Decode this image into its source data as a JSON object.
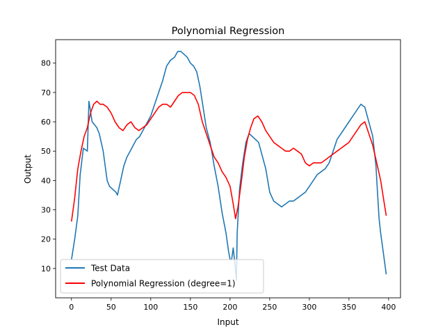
{
  "chart_data": {
    "type": "line",
    "title": "Polynomial Regression",
    "xlabel": "Input",
    "ylabel": "Output",
    "xlim": [
      -20,
      415
    ],
    "ylim": [
      0,
      88
    ],
    "x_ticks": [
      0,
      50,
      100,
      150,
      200,
      250,
      300,
      350,
      400
    ],
    "y_ticks": [
      10,
      20,
      30,
      40,
      50,
      60,
      70,
      80
    ],
    "legend_position": "lower-left",
    "series": [
      {
        "name": "Test Data",
        "color": "#1f77b4",
        "points": [
          [
            0,
            13
          ],
          [
            4,
            20
          ],
          [
            8,
            28
          ],
          [
            11,
            42
          ],
          [
            15,
            51
          ],
          [
            20,
            50
          ],
          [
            22,
            67
          ],
          [
            26,
            60
          ],
          [
            32,
            58
          ],
          [
            35,
            56
          ],
          [
            40,
            50
          ],
          [
            45,
            40
          ],
          [
            48,
            38
          ],
          [
            52,
            37
          ],
          [
            56,
            36
          ],
          [
            58,
            35
          ],
          [
            62,
            40
          ],
          [
            66,
            45
          ],
          [
            70,
            48
          ],
          [
            74,
            50
          ],
          [
            78,
            52
          ],
          [
            82,
            54
          ],
          [
            86,
            55
          ],
          [
            90,
            57
          ],
          [
            94,
            59
          ],
          [
            100,
            62
          ],
          [
            105,
            66
          ],
          [
            110,
            70
          ],
          [
            115,
            74
          ],
          [
            120,
            79
          ],
          [
            125,
            81
          ],
          [
            130,
            82
          ],
          [
            134,
            84
          ],
          [
            138,
            84
          ],
          [
            142,
            83
          ],
          [
            146,
            82
          ],
          [
            150,
            80
          ],
          [
            154,
            79
          ],
          [
            158,
            77
          ],
          [
            162,
            72
          ],
          [
            166,
            65
          ],
          [
            170,
            58
          ],
          [
            175,
            53
          ],
          [
            180,
            45
          ],
          [
            185,
            38
          ],
          [
            190,
            29
          ],
          [
            195,
            22
          ],
          [
            198,
            16
          ],
          [
            200,
            13
          ],
          [
            202,
            13
          ],
          [
            204,
            17
          ],
          [
            206,
            12
          ],
          [
            208,
            6
          ],
          [
            209,
            22
          ],
          [
            212,
            37
          ],
          [
            216,
            46
          ],
          [
            220,
            53
          ],
          [
            224,
            56
          ],
          [
            228,
            55
          ],
          [
            232,
            54
          ],
          [
            236,
            53
          ],
          [
            240,
            49
          ],
          [
            245,
            44
          ],
          [
            250,
            36
          ],
          [
            255,
            33
          ],
          [
            260,
            32
          ],
          [
            265,
            31
          ],
          [
            270,
            32
          ],
          [
            275,
            33
          ],
          [
            280,
            33
          ],
          [
            285,
            34
          ],
          [
            290,
            35
          ],
          [
            295,
            36
          ],
          [
            300,
            38
          ],
          [
            305,
            40
          ],
          [
            310,
            42
          ],
          [
            315,
            43
          ],
          [
            320,
            44
          ],
          [
            325,
            46
          ],
          [
            330,
            50
          ],
          [
            335,
            54
          ],
          [
            340,
            56
          ],
          [
            345,
            58
          ],
          [
            350,
            60
          ],
          [
            355,
            62
          ],
          [
            360,
            64
          ],
          [
            365,
            66
          ],
          [
            370,
            65
          ],
          [
            375,
            60
          ],
          [
            380,
            55
          ],
          [
            384,
            45
          ],
          [
            386,
            36
          ],
          [
            388,
            27
          ],
          [
            390,
            22
          ],
          [
            392,
            18
          ],
          [
            394,
            14
          ],
          [
            397,
            8
          ]
        ]
      },
      {
        "name": "Polynomial Regression (degree=1)",
        "color": "#ff0000",
        "points": [
          [
            0,
            26
          ],
          [
            4,
            34
          ],
          [
            8,
            44
          ],
          [
            12,
            50
          ],
          [
            16,
            55
          ],
          [
            20,
            58
          ],
          [
            24,
            63
          ],
          [
            28,
            66
          ],
          [
            32,
            67
          ],
          [
            36,
            66
          ],
          [
            40,
            66
          ],
          [
            45,
            65
          ],
          [
            50,
            63
          ],
          [
            55,
            60
          ],
          [
            60,
            58
          ],
          [
            65,
            57
          ],
          [
            70,
            59
          ],
          [
            75,
            60
          ],
          [
            80,
            58
          ],
          [
            85,
            57
          ],
          [
            90,
            58
          ],
          [
            95,
            59
          ],
          [
            100,
            61
          ],
          [
            105,
            63
          ],
          [
            110,
            65
          ],
          [
            115,
            66
          ],
          [
            120,
            66
          ],
          [
            125,
            65
          ],
          [
            130,
            67
          ],
          [
            135,
            69
          ],
          [
            140,
            70
          ],
          [
            145,
            70
          ],
          [
            150,
            70
          ],
          [
            155,
            69
          ],
          [
            160,
            66
          ],
          [
            165,
            60
          ],
          [
            170,
            56
          ],
          [
            175,
            52
          ],
          [
            180,
            48
          ],
          [
            185,
            46
          ],
          [
            190,
            43
          ],
          [
            195,
            41
          ],
          [
            200,
            38
          ],
          [
            204,
            32
          ],
          [
            207,
            27
          ],
          [
            210,
            31
          ],
          [
            214,
            39
          ],
          [
            218,
            48
          ],
          [
            222,
            54
          ],
          [
            226,
            58
          ],
          [
            230,
            61
          ],
          [
            235,
            62
          ],
          [
            240,
            60
          ],
          [
            245,
            57
          ],
          [
            250,
            55
          ],
          [
            255,
            53
          ],
          [
            260,
            52
          ],
          [
            265,
            51
          ],
          [
            270,
            50
          ],
          [
            275,
            50
          ],
          [
            280,
            51
          ],
          [
            285,
            50
          ],
          [
            290,
            49
          ],
          [
            295,
            46
          ],
          [
            300,
            45
          ],
          [
            305,
            46
          ],
          [
            310,
            46
          ],
          [
            315,
            46
          ],
          [
            320,
            47
          ],
          [
            325,
            48
          ],
          [
            330,
            49
          ],
          [
            335,
            50
          ],
          [
            340,
            51
          ],
          [
            345,
            52
          ],
          [
            350,
            53
          ],
          [
            355,
            55
          ],
          [
            360,
            57
          ],
          [
            365,
            59
          ],
          [
            370,
            60
          ],
          [
            375,
            56
          ],
          [
            380,
            52
          ],
          [
            385,
            46
          ],
          [
            390,
            40
          ],
          [
            394,
            33
          ],
          [
            397,
            28
          ]
        ]
      }
    ]
  }
}
